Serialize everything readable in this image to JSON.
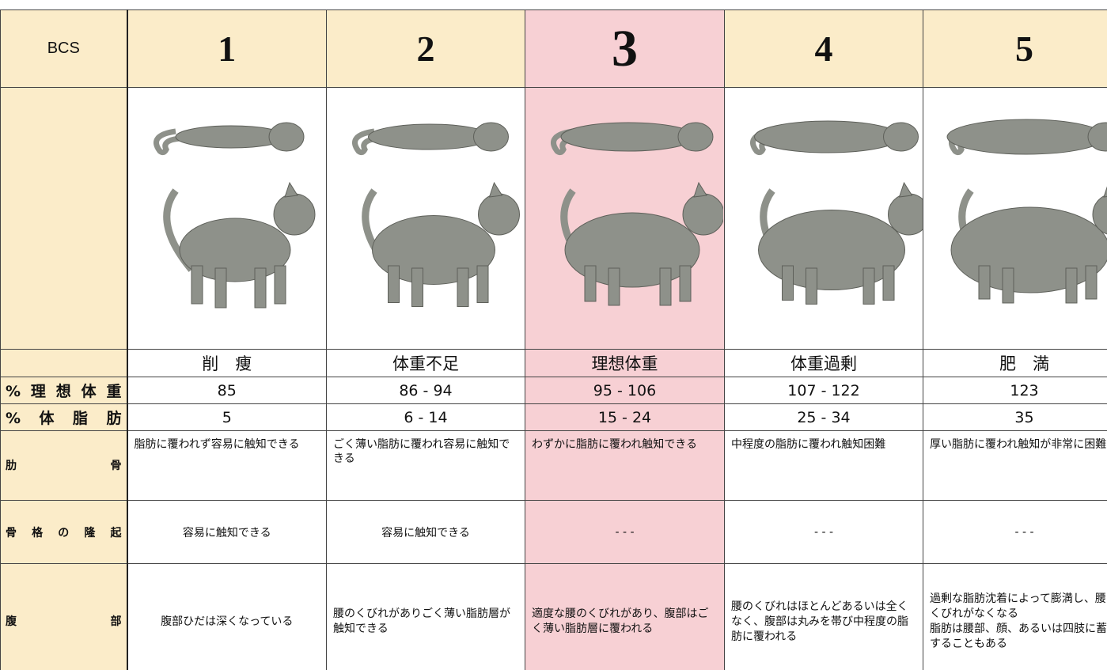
{
  "header": {
    "label": "BCS",
    "columns": [
      "1",
      "2",
      "3",
      "4",
      "5"
    ]
  },
  "conditions": [
    "削　痩",
    "体重不足",
    "理想体重",
    "体重過剰",
    "肥　満"
  ],
  "rows": [
    {
      "label": "%理想体重",
      "cells": [
        "85",
        "86 - 94",
        "95 - 106",
        "107 - 122",
        "123"
      ]
    },
    {
      "label": "%体脂肪",
      "cells": [
        "5",
        "6 - 14",
        "15 - 24",
        "25 - 34",
        "35"
      ]
    },
    {
      "label": "肋骨",
      "cells": [
        "脂肪に覆われず容易に触知できる",
        "ごく薄い脂肪に覆われ容易に触知できる",
        "わずかに脂肪に覆われ触知できる",
        "中程度の脂肪に覆われ触知困難",
        "厚い脂肪に覆われ触知が非常に困難"
      ]
    },
    {
      "label": "骨格の隆起",
      "cells": [
        "容易に触知できる",
        "容易に触知できる",
        "- - -",
        "- - -",
        "- - -"
      ]
    },
    {
      "label": "腹部",
      "cells": [
        "腹部ひだは深くなっている",
        "腰のくびれがありごく薄い脂肪層が触知できる",
        "適度な腰のくびれがあり、腹部はごく薄い脂肪層に覆われる",
        "腰のくびれはほとんどあるいは全くなく、腹部は丸みを帯び中程度の脂肪に覆われる",
        [
          "過剰な脂肪沈着によって膨満し、腰のくびれがなくなる",
          "脂肪は腰部、顔、あるいは四肢に蓄積することもある"
        ]
      ]
    }
  ]
}
